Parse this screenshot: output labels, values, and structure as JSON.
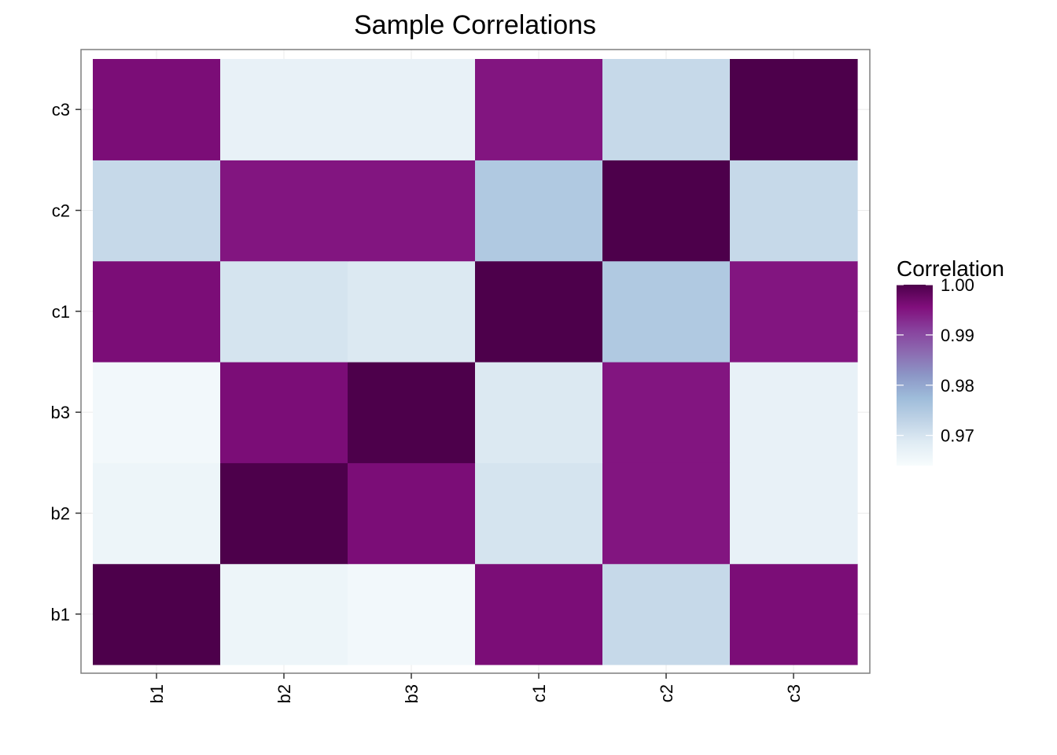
{
  "chart_data": {
    "type": "heatmap",
    "title": "Sample Correlations",
    "xlabel": "",
    "ylabel": "",
    "x_categories": [
      "b1",
      "b2",
      "b3",
      "c1",
      "c2",
      "c3"
    ],
    "y_categories": [
      "b1",
      "b2",
      "b3",
      "c1",
      "c2",
      "c3"
    ],
    "matrix": [
      [
        1.0,
        0.966,
        0.965,
        0.996,
        0.972,
        0.996
      ],
      [
        0.966,
        1.0,
        0.996,
        0.97,
        0.995,
        0.967
      ],
      [
        0.965,
        0.996,
        1.0,
        0.969,
        0.995,
        0.967
      ],
      [
        0.996,
        0.97,
        0.969,
        1.0,
        0.975,
        0.995
      ],
      [
        0.972,
        0.995,
        0.995,
        0.975,
        1.0,
        0.972
      ],
      [
        0.996,
        0.967,
        0.967,
        0.995,
        0.972,
        1.0
      ]
    ],
    "legend": {
      "title": "Correlation",
      "placement": "right",
      "range": [
        0.964,
        1.0
      ],
      "ticks": [
        1.0,
        0.99,
        0.98,
        0.97
      ],
      "tick_labels": [
        "1.00",
        "0.99",
        "0.98",
        "0.97"
      ],
      "colors": [
        "#f7fcfd",
        "#e0ecf4",
        "#bfd3e6",
        "#9ebcda",
        "#8c96c6",
        "#8c6bb1",
        "#88419d",
        "#810f7c",
        "#4d004b"
      ]
    },
    "grid": true
  }
}
